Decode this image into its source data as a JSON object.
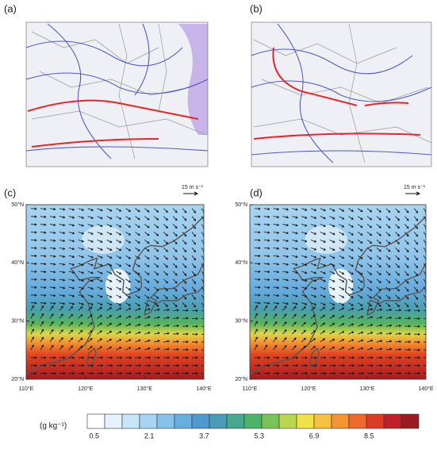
{
  "panels": [
    {
      "label": "(a)"
    },
    {
      "label": "(b)"
    },
    {
      "label": "(c)",
      "reference_vector": "15 m s⁻¹",
      "lat_labels": [
        "50°N",
        "40°N",
        "30°N",
        "20°N"
      ],
      "lon_labels": [
        "110°E",
        "120°E",
        "130°E",
        "140°E"
      ]
    },
    {
      "label": "(d)",
      "reference_vector": "15 m s⁻¹",
      "lat_labels": [
        "50°N",
        "40°N",
        "30°N",
        "20°N"
      ],
      "lon_labels": [
        "110°E",
        "120°E",
        "130°E",
        "140°E"
      ]
    }
  ],
  "colorbar": {
    "unit": "(g kg⁻¹)",
    "labels": [
      "0.5",
      "2.1",
      "3.7",
      "5.3",
      "6.9",
      "8.5"
    ],
    "colors": [
      "#ffffff",
      "#e3f2fb",
      "#c6e6f7",
      "#a6d5f1",
      "#86c2ea",
      "#66aedf",
      "#4f98d0",
      "#4a9bb5",
      "#45a88f",
      "#4cb56a",
      "#7ac356",
      "#b8d64e",
      "#f0e34a",
      "#f8c03c",
      "#f49432",
      "#ee6a2a",
      "#de3b24",
      "#c0202a",
      "#9b1a24"
    ]
  }
}
